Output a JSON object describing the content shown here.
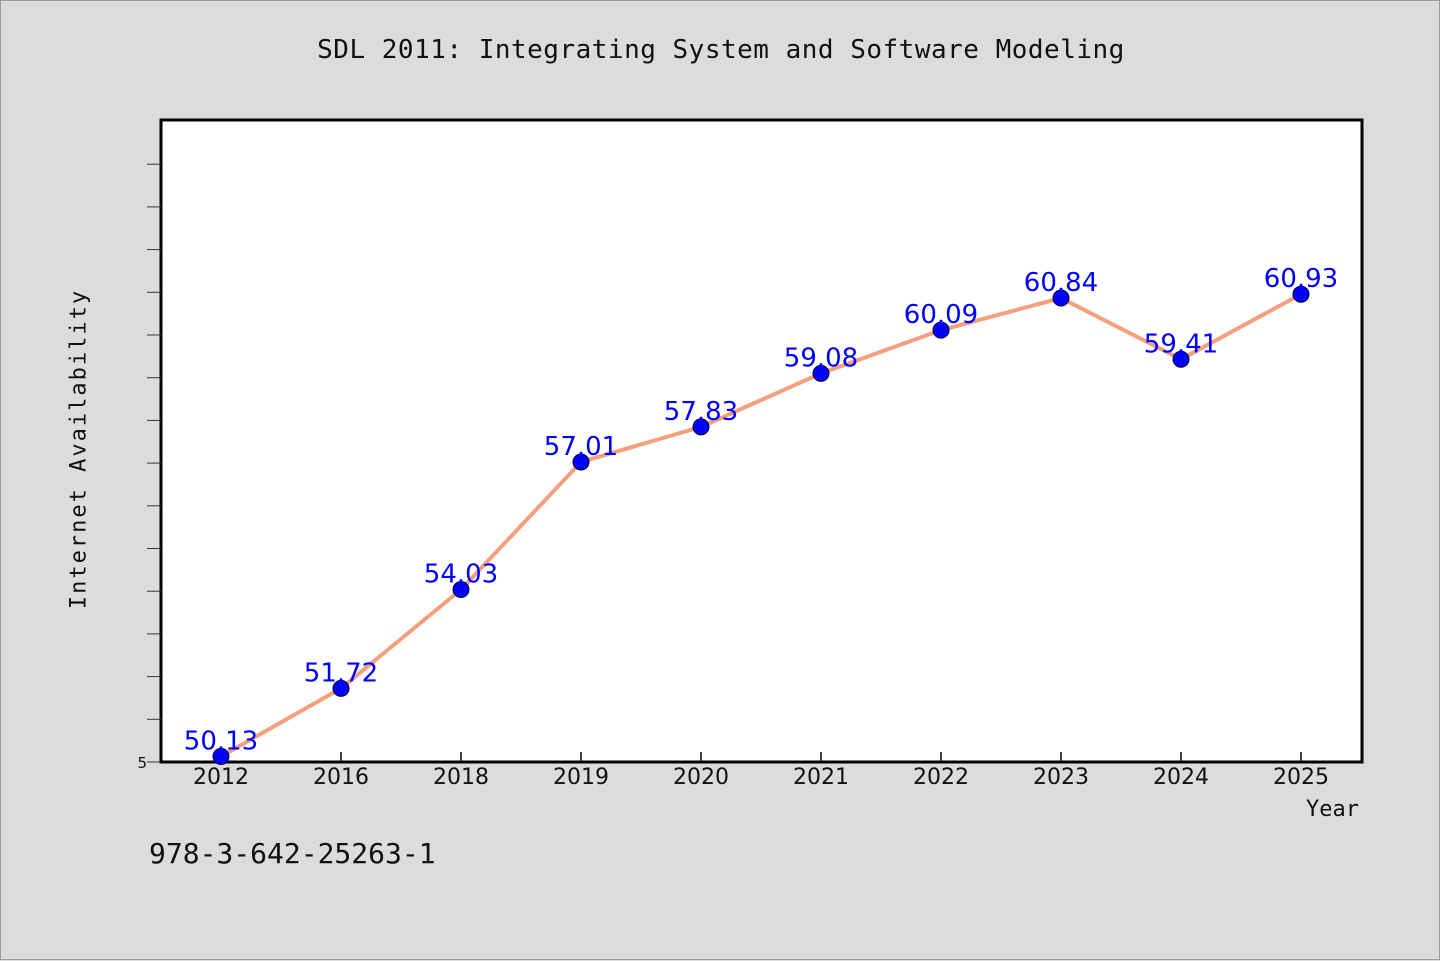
{
  "chart_data": {
    "type": "line",
    "title": "SDL 2011: Integrating System and Software Modeling",
    "xlabel": "Year",
    "ylabel": "Internet Availability",
    "categories": [
      "2012",
      "2016",
      "2018",
      "2019",
      "2020",
      "2021",
      "2022",
      "2023",
      "2024",
      "2025"
    ],
    "series": [
      {
        "values": [
          50.13,
          51.72,
          54.03,
          57.01,
          57.83,
          59.08,
          60.09,
          60.84,
          59.41,
          60.93
        ],
        "line_color": "#f4a07e",
        "marker_color": "#0000ff"
      }
    ],
    "data_labels": [
      "50.13",
      "51.72",
      "54.03",
      "57.01",
      "57.83",
      "59.08",
      "60.09",
      "60.84",
      "59.41",
      "60.93"
    ],
    "y_tick_labels": [
      "5"
    ],
    "ylim": [
      50,
      65
    ],
    "grid": false,
    "legend": false
  },
  "footer_text": "978-3-642-25263-1",
  "colors": {
    "background": "#dcdcdc",
    "plot_background": "#ffffff",
    "line": "#f4a07e",
    "marker": "#0000ff",
    "data_label": "#0000ff"
  }
}
